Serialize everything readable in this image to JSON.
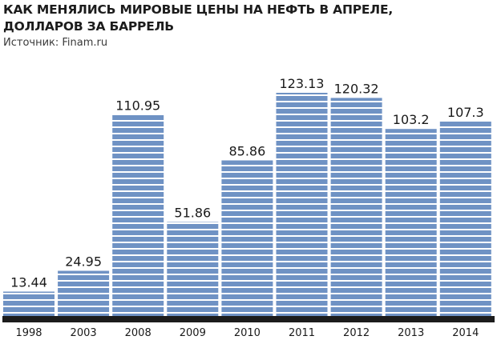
{
  "chart_data": {
    "type": "bar",
    "title": "КАК МЕНЯЛИСЬ МИРОВЫЕ ЦЕНЫ НА НЕФТЬ В АПРЕЛЕ, ДОЛЛАРОВ ЗА БАРРЕЛЬ",
    "subtitle": "Источник: Finam.ru",
    "categories": [
      "1998",
      "2003",
      "2008",
      "2009",
      "2010",
      "2011",
      "2012",
      "2013",
      "2014"
    ],
    "values": [
      13.44,
      24.95,
      110.95,
      51.86,
      85.86,
      123.13,
      120.32,
      103.2,
      107.3
    ],
    "value_labels": [
      "13.44",
      "24.95",
      "110.95",
      "51.86",
      "85.86",
      "123.13",
      "120.32",
      "103.2",
      "107.3"
    ],
    "ylim": [
      0,
      123.13
    ],
    "grid": false,
    "colors": {
      "bar": "#6f92c4",
      "bar_stripe": "#ffffff",
      "baseline": "#1c1c1c"
    }
  }
}
